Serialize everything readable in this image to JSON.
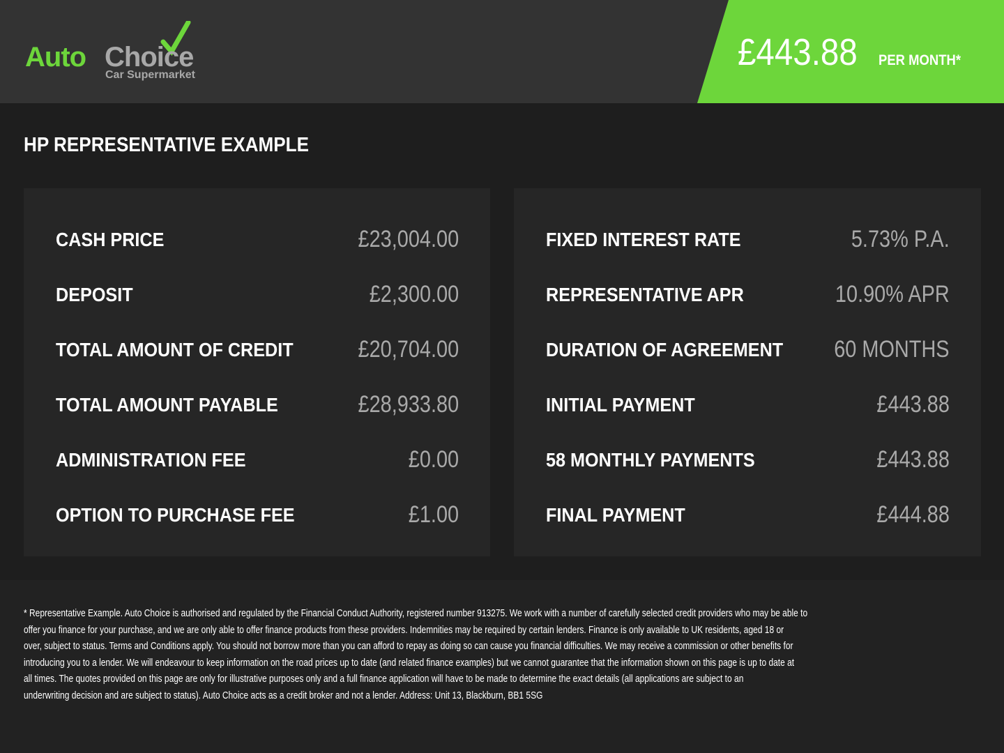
{
  "brand": {
    "name_part1": "Auto",
    "name_part2": "Choice",
    "tagline": "Car Supermarket",
    "accent": "#6dd63b"
  },
  "header": {
    "monthly_price": "£443.88",
    "per_month_label": "PER MONTH*"
  },
  "title": "HP REPRESENTATIVE EXAMPLE",
  "left_rows": [
    {
      "label": "CASH PRICE",
      "value": "£23,004.00"
    },
    {
      "label": "DEPOSIT",
      "value": "£2,300.00"
    },
    {
      "label": "TOTAL AMOUNT OF CREDIT",
      "value": "£20,704.00"
    },
    {
      "label": "TOTAL AMOUNT PAYABLE",
      "value": "£28,933.80"
    },
    {
      "label": "ADMINISTRATION FEE",
      "value": "£0.00"
    },
    {
      "label": "OPTION TO PURCHASE FEE",
      "value": "£1.00"
    }
  ],
  "right_rows": [
    {
      "label": "FIXED INTEREST RATE",
      "value": "5.73% P.A."
    },
    {
      "label": "REPRESENTATIVE APR",
      "value": "10.90% APR"
    },
    {
      "label": "DURATION OF AGREEMENT",
      "value": "60 MONTHS"
    },
    {
      "label": "INITIAL PAYMENT",
      "value": "£443.88"
    },
    {
      "label": "58 MONTHLY PAYMENTS",
      "value": "£443.88"
    },
    {
      "label": "FINAL PAYMENT",
      "value": "£444.88"
    }
  ],
  "disclaimer_lines": [
    "* Representative Example. Auto Choice is authorised and regulated by the Financial Conduct Authority, registered number 913275. We work with a number of carefully selected credit providers who may be able to",
    "offer you finance for your purchase, and we are only able to offer finance products from these providers. Indemnities may be required by certain lenders. Finance is only available to UK residents, aged 18 or",
    "over, subject to status. Terms and Conditions apply. You should not borrow more than you can afford to repay as doing so can cause you financial difficulties. We may receive a commission or other benefits for",
    "introducing you to a lender. We will endeavour to keep information on the road prices up to date (and related finance examples) but we cannot guarantee that the information shown on this page is up to date at",
    "all times. The quotes provided on this page are only for illustrative purposes only and a full finance application will have to be made to determine the exact details (all applications are subject to an",
    "underwriting decision and are subject to status). Auto Choice acts as a credit broker and not a lender. Address: Unit 13, Blackburn, BB1 5SG"
  ]
}
